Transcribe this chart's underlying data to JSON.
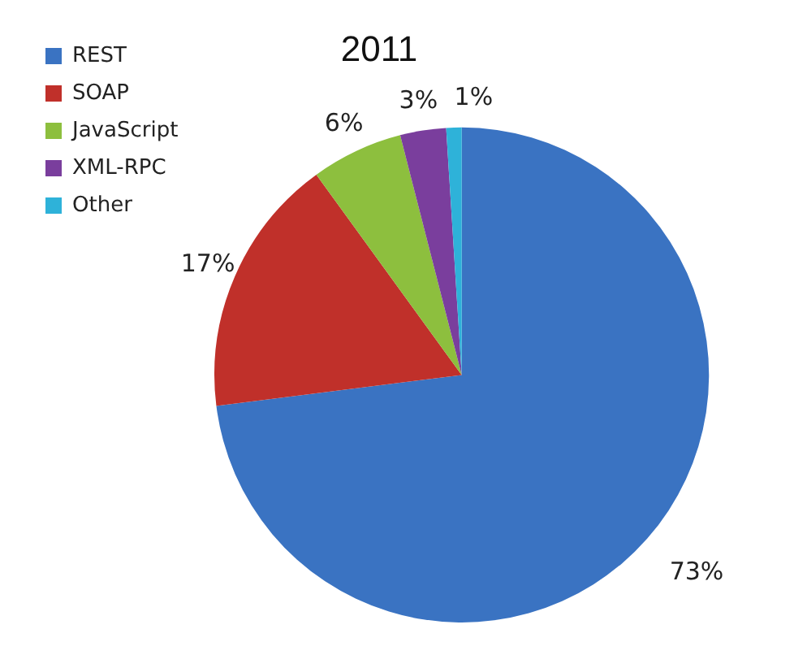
{
  "chart_data": {
    "type": "pie",
    "title": "2011",
    "categories": [
      "REST",
      "SOAP",
      "JavaScript",
      "XML-RPC",
      "Other"
    ],
    "values": [
      73,
      17,
      6,
      3,
      1
    ],
    "colors": [
      "#3a73c2",
      "#c0302a",
      "#8dbf3e",
      "#7a3e9d",
      "#2eb2d9"
    ],
    "legend": "top left",
    "value_labels": [
      "73%",
      "17%",
      "6%",
      "3%",
      "1%"
    ]
  }
}
